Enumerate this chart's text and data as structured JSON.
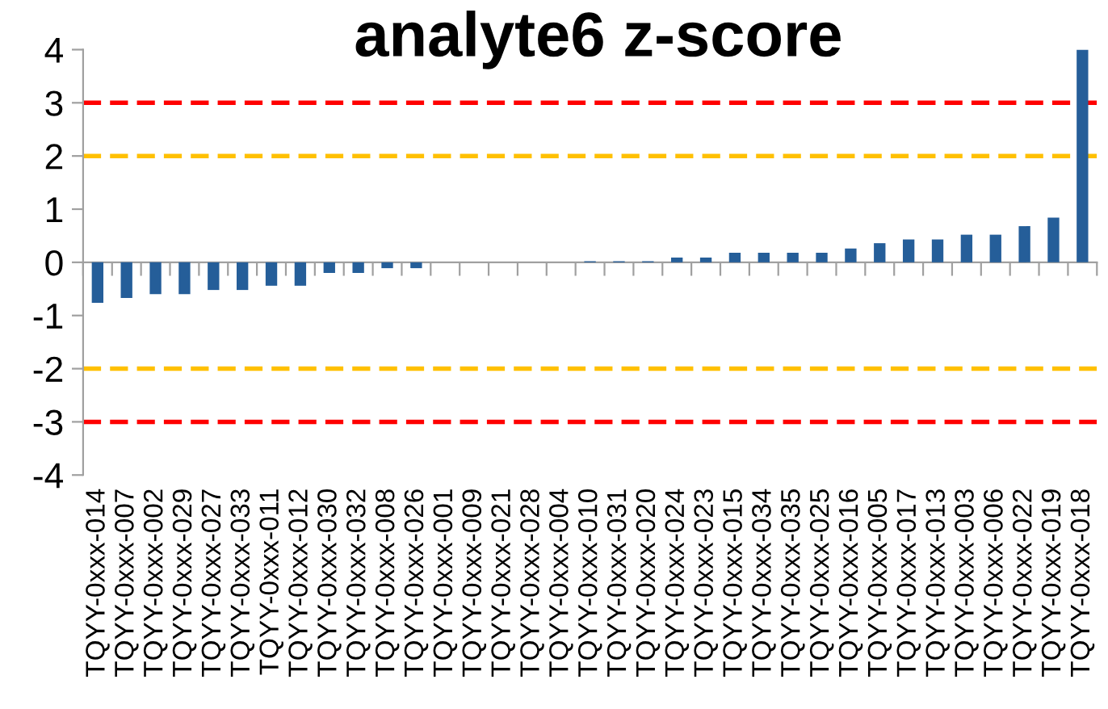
{
  "chart_data": {
    "type": "bar",
    "title": "analyte6 z-score",
    "categories": [
      "TQYY-0xxx-014",
      "TQYY-0xxx-007",
      "TQYY-0xxx-002",
      "TQYY-0xxx-029",
      "TQYY-0xxx-027",
      "TQYY-0xxx-033",
      "TQYY-0xxx-011",
      "TQYY-0xxx-012",
      "TQYY-0xxx-030",
      "TQYY-0xxx-032",
      "TQYY-0xxx-008",
      "TQYY-0xxx-026",
      "TQYY-0xxx-001",
      "TQYY-0xxx-009",
      "TQYY-0xxx-021",
      "TQYY-0xxx-028",
      "TQYY-0xxx-004",
      "TQYY-0xxx-010",
      "TQYY-0xxx-031",
      "TQYY-0xxx-020",
      "TQYY-0xxx-024",
      "TQYY-0xxx-023",
      "TQYY-0xxx-015",
      "TQYY-0xxx-034",
      "TQYY-0xxx-035",
      "TQYY-0xxx-025",
      "TQYY-0xxx-016",
      "TQYY-0xxx-005",
      "TQYY-0xxx-017",
      "TQYY-0xxx-013",
      "TQYY-0xxx-003",
      "TQYY-0xxx-006",
      "TQYY-0xxx-022",
      "TQYY-0xxx-019",
      "TQYY-0xxx-018"
    ],
    "values": [
      -0.76,
      -0.67,
      -0.6,
      -0.6,
      -0.52,
      -0.52,
      -0.44,
      -0.44,
      -0.2,
      -0.2,
      -0.11,
      -0.11,
      0,
      0,
      0,
      0,
      0,
      0.02,
      0.02,
      0.02,
      0.09,
      0.09,
      0.18,
      0.18,
      0.18,
      0.18,
      0.26,
      0.36,
      0.43,
      0.43,
      0.52,
      0.52,
      0.68,
      0.84,
      4.0
    ],
    "color": "#255e99",
    "ylim": [
      -4,
      4
    ],
    "yticks": [
      -4,
      -3,
      -2,
      -1,
      0,
      1,
      2,
      3,
      4
    ],
    "grid": false,
    "legend": false,
    "ref_lines": [
      {
        "axis": "y",
        "value": 3,
        "color": "#ff0000",
        "line_style": "dashed"
      },
      {
        "axis": "y",
        "value": 2,
        "color": "#ffc000",
        "line_style": "dashed"
      },
      {
        "axis": "y",
        "value": -2,
        "color": "#ffc000",
        "line_style": "dashed"
      },
      {
        "axis": "y",
        "value": -3,
        "color": "#ff0000",
        "line_style": "dashed"
      }
    ]
  }
}
